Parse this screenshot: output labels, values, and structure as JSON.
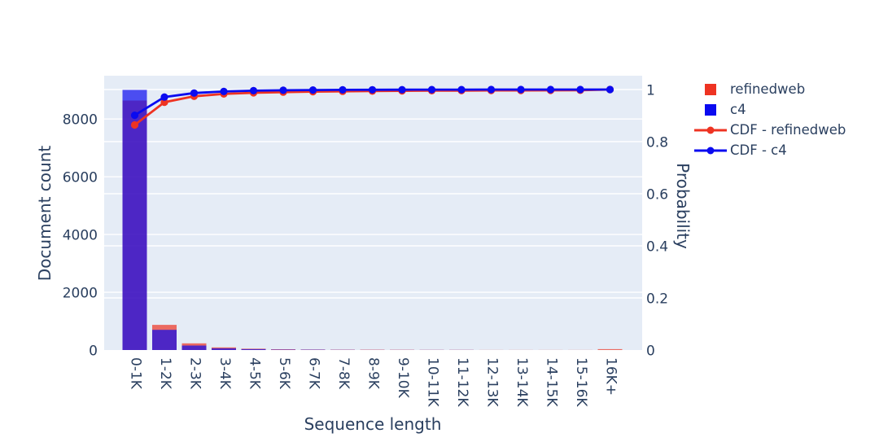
{
  "figure": {
    "x_axis_title": "Sequence length",
    "y_left_axis_title": "Document count",
    "y_right_axis_title": "Probability"
  },
  "colors": {
    "refinedweb": "#EE3322",
    "c4": "#0A0AF0",
    "plot_background": "#E5ECF6",
    "gridline": "#FFFFFF",
    "text": "#2A3F5F"
  },
  "legend": {
    "items": [
      {
        "label": "refinedweb",
        "symbol": "square",
        "color": "#EE3322"
      },
      {
        "label": "c4",
        "symbol": "square",
        "color": "#0A0AF0"
      },
      {
        "label": "CDF - refinedweb",
        "symbol": "line-marker",
        "color": "#EE3322"
      },
      {
        "label": "CDF - c4",
        "symbol": "line-marker",
        "color": "#0A0AF0"
      }
    ]
  },
  "chart_data": {
    "type": "bar",
    "bar_mode": "overlay",
    "bar_opacity": 0.7,
    "title": "",
    "xlabel": "Sequence length",
    "categories": [
      "0-1K",
      "1-2K",
      "2-3K",
      "3-4K",
      "4-5K",
      "5-6K",
      "6-7K",
      "7-8K",
      "8-9K",
      "9-10K",
      "10-11K",
      "11-12K",
      "12-13K",
      "13-14K",
      "14-15K",
      "15-16K",
      "16K+"
    ],
    "series": [
      {
        "name": "refinedweb",
        "kind": "bar",
        "axis": "left",
        "color": "#EE3322",
        "values": [
          8640,
          870,
          230,
          90,
          45,
          25,
          18,
          12,
          10,
          8,
          6,
          5,
          4,
          3,
          2,
          2,
          30
        ]
      },
      {
        "name": "c4",
        "kind": "bar",
        "axis": "left",
        "color": "#0A0AF0",
        "values": [
          9010,
          700,
          155,
          60,
          30,
          15,
          10,
          6,
          4,
          3,
          2,
          2,
          1,
          1,
          0,
          1,
          0
        ]
      },
      {
        "name": "CDF - refinedweb",
        "kind": "line",
        "axis": "right",
        "color": "#EE3322",
        "values": [
          0.864,
          0.951,
          0.974,
          0.983,
          0.9875,
          0.99,
          0.9918,
          0.993,
          0.994,
          0.9948,
          0.9954,
          0.9959,
          0.9963,
          0.9966,
          0.9968,
          0.997,
          1.0
        ]
      },
      {
        "name": "CDF - c4",
        "kind": "line",
        "axis": "right",
        "color": "#0A0AF0",
        "values": [
          0.901,
          0.971,
          0.9865,
          0.9925,
          0.9955,
          0.997,
          0.998,
          0.9986,
          0.999,
          0.9993,
          0.9995,
          0.9997,
          0.9998,
          0.9999,
          0.9999,
          1.0,
          1.0
        ]
      }
    ],
    "y_left": {
      "label": "Document count",
      "ticks": [
        0,
        2000,
        4000,
        6000,
        8000
      ],
      "range": [
        0,
        9500
      ]
    },
    "y_right": {
      "label": "Probability",
      "ticks": [
        0,
        0.2,
        0.4,
        0.6,
        0.8,
        1
      ],
      "range": [
        0,
        1.053
      ]
    },
    "grid": true,
    "legend_position": "top-right-outside"
  }
}
